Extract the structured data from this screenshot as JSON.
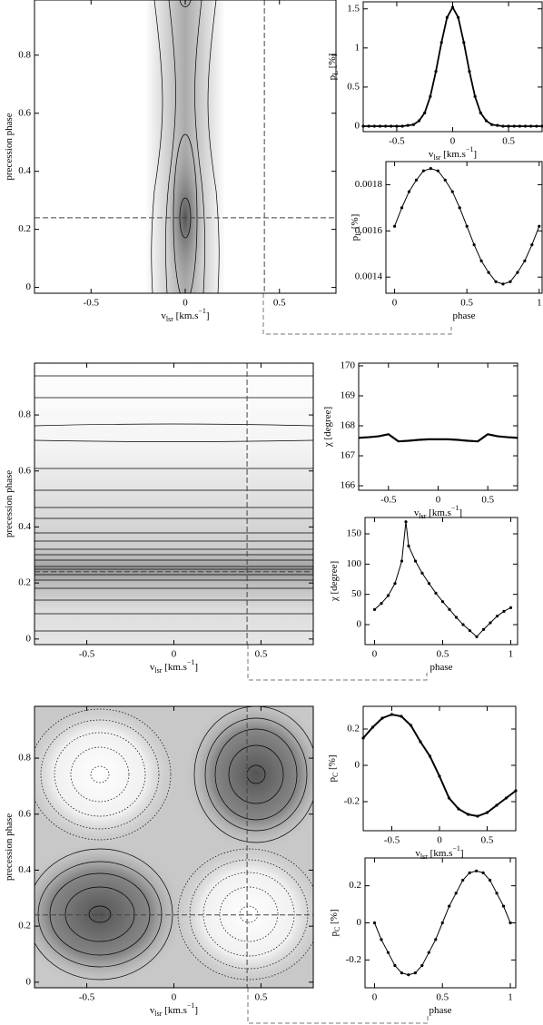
{
  "chart_data": [
    {
      "type": "contour",
      "xlim": [
        -0.8,
        0.8
      ],
      "ylim": [
        -0.02,
        0.99
      ],
      "xticks": [
        -0.5,
        0,
        0.5
      ],
      "yticks": [
        0,
        0.2,
        0.4,
        0.6,
        0.8
      ],
      "xlabel": [
        {
          "text": "v"
        },
        {
          "sub": "lsr"
        },
        {
          "text": " [km.s"
        },
        {
          "sup": "−1"
        },
        {
          "text": "]"
        }
      ],
      "ylabel": [
        {
          "text": "precession phase"
        }
      ],
      "crosshair": {
        "x": 0.42,
        "y": 0.24
      }
    },
    {
      "type": "line",
      "xlim": [
        -0.8,
        0.8
      ],
      "ylim": [
        -0.07,
        1.59
      ],
      "xticks": [
        -0.5,
        0,
        0.5
      ],
      "yticks": [
        0,
        0.5,
        1,
        1.5
      ],
      "xlabel": [
        {
          "text": "v"
        },
        {
          "sub": "lsr"
        },
        {
          "text": " [km.s"
        },
        {
          "sup": "−1"
        },
        {
          "text": "]"
        }
      ],
      "ylabel": [
        {
          "text": "p"
        },
        {
          "sub": "L"
        },
        {
          "text": " [%]"
        }
      ],
      "markers": true,
      "line_width": 1.8,
      "x": [
        -0.8,
        -0.75,
        -0.7,
        -0.65,
        -0.6,
        -0.55,
        -0.5,
        -0.45,
        -0.4,
        -0.35,
        -0.3,
        -0.25,
        -0.2,
        -0.15,
        -0.1,
        -0.05,
        0,
        0.05,
        0.1,
        0.15,
        0.2,
        0.25,
        0.3,
        0.35,
        0.4,
        0.45,
        0.5,
        0.55,
        0.6,
        0.65,
        0.7,
        0.75,
        0.8
      ],
      "series": [
        {
          "color": "#000",
          "values": [
            0,
            0,
            0,
            0,
            0,
            0,
            0,
            0,
            0.01,
            0.02,
            0.07,
            0.17,
            0.38,
            0.7,
            1.07,
            1.39,
            1.52,
            1.39,
            1.07,
            0.7,
            0.38,
            0.17,
            0.07,
            0.02,
            0.01,
            0,
            0,
            0,
            0,
            0,
            0,
            0,
            0
          ]
        }
      ]
    },
    {
      "type": "line",
      "xlim": [
        -0.06,
        1.02
      ],
      "ylim": [
        0.00133,
        0.0019
      ],
      "xticks": [
        0,
        0.5,
        1
      ],
      "yticks": [
        0.0014,
        0.0016,
        0.0018
      ],
      "xlabel": [
        {
          "text": "phase"
        }
      ],
      "ylabel": [
        {
          "text": "p"
        },
        {
          "sub": "L"
        },
        {
          "text": " [%]"
        }
      ],
      "markers": true,
      "line_width": 1,
      "x": [
        0,
        0.05,
        0.1,
        0.15,
        0.2,
        0.25,
        0.3,
        0.35,
        0.4,
        0.45,
        0.5,
        0.55,
        0.6,
        0.65,
        0.7,
        0.75,
        0.8,
        0.85,
        0.9,
        0.95,
        1
      ],
      "series": [
        {
          "color": "#000",
          "values": [
            0.00162,
            0.0017,
            0.00177,
            0.00182,
            0.00186,
            0.00187,
            0.00186,
            0.00182,
            0.00177,
            0.0017,
            0.00162,
            0.00154,
            0.00147,
            0.00142,
            0.00138,
            0.00137,
            0.00138,
            0.00142,
            0.00147,
            0.00154,
            0.00162
          ]
        }
      ]
    },
    {
      "type": "contour",
      "xlim": [
        -0.8,
        0.8
      ],
      "ylim": [
        -0.02,
        0.985
      ],
      "xticks": [
        -0.5,
        0,
        0.5
      ],
      "yticks": [
        0,
        0.2,
        0.4,
        0.6,
        0.8
      ],
      "xlabel": [
        {
          "text": "v"
        },
        {
          "sub": "lsr"
        },
        {
          "text": " [km.s"
        },
        {
          "sup": "−1"
        },
        {
          "text": "]"
        }
      ],
      "ylabel": [
        {
          "text": "precession phase"
        }
      ],
      "crosshair": {
        "x": 0.42,
        "y": 0.24
      }
    },
    {
      "type": "line",
      "xlim": [
        -0.8,
        0.8
      ],
      "ylim": [
        165.85,
        170.09
      ],
      "xticks": [
        -0.5,
        0,
        0.5
      ],
      "yticks": [
        166,
        167,
        168,
        169,
        170
      ],
      "xlabel": [
        {
          "text": "v"
        },
        {
          "sub": "lsr"
        },
        {
          "text": " [km.s"
        },
        {
          "sup": "−1"
        },
        {
          "text": "]"
        }
      ],
      "ylabel": [
        {
          "text": "χ [degree]"
        }
      ],
      "markers": false,
      "line_width": 2.2,
      "x": [
        -0.8,
        -0.7,
        -0.6,
        -0.5,
        -0.4,
        -0.3,
        -0.2,
        -0.1,
        0,
        0.1,
        0.2,
        0.3,
        0.4,
        0.5,
        0.6,
        0.7,
        0.8
      ],
      "series": [
        {
          "color": "#000",
          "values": [
            167.6,
            167.62,
            167.65,
            167.72,
            167.48,
            167.5,
            167.53,
            167.55,
            167.55,
            167.55,
            167.53,
            167.5,
            167.48,
            167.72,
            167.65,
            167.62,
            167.6
          ]
        }
      ]
    },
    {
      "type": "line",
      "xlim": [
        -0.07,
        1.05
      ],
      "ylim": [
        -33,
        177
      ],
      "xticks": [
        0,
        0.5,
        1
      ],
      "yticks": [
        0,
        50,
        100,
        150
      ],
      "xlabel": [
        {
          "text": "phase"
        }
      ],
      "ylabel": [
        {
          "text": "χ [degree]"
        }
      ],
      "markers": true,
      "line_width": 1,
      "x": [
        0,
        0.05,
        0.1,
        0.15,
        0.2,
        0.23,
        0.25,
        0.3,
        0.35,
        0.4,
        0.45,
        0.5,
        0.55,
        0.6,
        0.65,
        0.7,
        0.75,
        0.8,
        0.85,
        0.9,
        0.95,
        1
      ],
      "series": [
        {
          "color": "#000",
          "values": [
            25,
            35,
            48,
            68,
            105,
            170,
            130,
            105,
            85,
            68,
            52,
            38,
            25,
            12,
            0,
            -10,
            -20,
            -8,
            3,
            14,
            22,
            28
          ]
        }
      ]
    },
    {
      "type": "contour",
      "xlim": [
        -0.8,
        0.8
      ],
      "ylim": [
        -0.02,
        0.985
      ],
      "xticks": [
        -0.5,
        0,
        0.5
      ],
      "yticks": [
        0,
        0.2,
        0.4,
        0.6,
        0.8
      ],
      "xlabel": [
        {
          "text": "v"
        },
        {
          "sub": "lsr"
        },
        {
          "text": " [km.s"
        },
        {
          "sup": "−1"
        },
        {
          "text": "]"
        }
      ],
      "ylabel": [
        {
          "text": "precession phase"
        }
      ],
      "crosshair": {
        "x": 0.42,
        "y": 0.24
      }
    },
    {
      "type": "line",
      "xlim": [
        -0.8,
        0.8
      ],
      "ylim": [
        -0.36,
        0.325
      ],
      "xticks": [
        -0.5,
        0,
        0.5
      ],
      "yticks": [
        -0.2,
        0,
        0.2
      ],
      "xlabel": [
        {
          "text": "v"
        },
        {
          "sub": "lsr"
        },
        {
          "text": " [km.s"
        },
        {
          "sup": "−1"
        },
        {
          "text": "]"
        }
      ],
      "ylabel": [
        {
          "text": "p"
        },
        {
          "sub": "C"
        },
        {
          "text": " [%]"
        }
      ],
      "markers": true,
      "line_width": 2,
      "x": [
        -0.8,
        -0.7,
        -0.6,
        -0.5,
        -0.4,
        -0.3,
        -0.2,
        -0.1,
        0,
        0.1,
        0.2,
        0.3,
        0.4,
        0.5,
        0.6,
        0.7,
        0.8
      ],
      "series": [
        {
          "color": "#000",
          "values": [
            0.15,
            0.21,
            0.26,
            0.28,
            0.27,
            0.22,
            0.13,
            0.05,
            -0.06,
            -0.18,
            -0.24,
            -0.27,
            -0.28,
            -0.26,
            -0.22,
            -0.18,
            -0.14
          ]
        }
      ]
    },
    {
      "type": "line",
      "xlim": [
        -0.07,
        1.04
      ],
      "ylim": [
        -0.35,
        0.35
      ],
      "xticks": [
        0,
        0.5,
        1
      ],
      "yticks": [
        -0.2,
        0,
        0.2
      ],
      "xlabel": [
        {
          "text": "phase"
        }
      ],
      "ylabel": [
        {
          "text": "p"
        },
        {
          "sub": "C"
        },
        {
          "text": " [%]"
        }
      ],
      "markers": true,
      "line_width": 1,
      "x": [
        0,
        0.05,
        0.1,
        0.15,
        0.2,
        0.25,
        0.3,
        0.35,
        0.4,
        0.45,
        0.5,
        0.55,
        0.6,
        0.65,
        0.7,
        0.75,
        0.8,
        0.85,
        0.9,
        0.95,
        1
      ],
      "series": [
        {
          "color": "#000",
          "values": [
            0,
            -0.09,
            -0.16,
            -0.23,
            -0.27,
            -0.28,
            -0.27,
            -0.23,
            -0.16,
            -0.09,
            0,
            0.09,
            0.16,
            0.23,
            0.27,
            0.28,
            0.27,
            0.23,
            0.16,
            0.09,
            0
          ]
        }
      ]
    }
  ]
}
